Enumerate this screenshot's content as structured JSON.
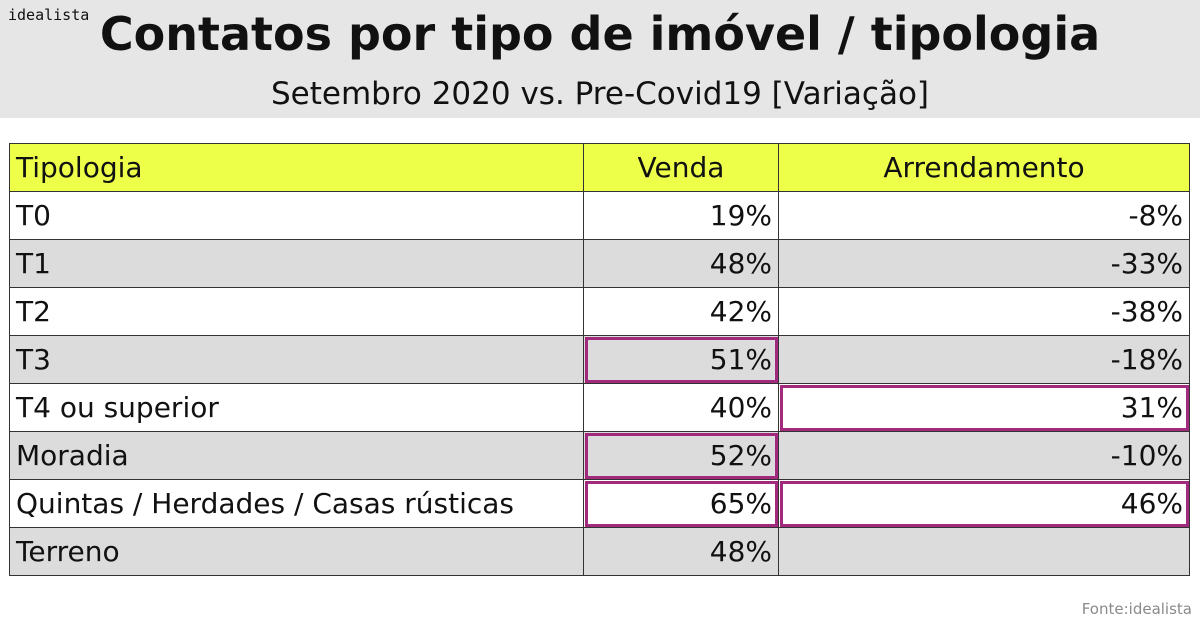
{
  "brand": "idealista",
  "header": {
    "title": "Contatos por tipo de imóvel / tipologia",
    "subtitle": "Setembro 2020 vs. Pre-Covid19 [Variação]"
  },
  "table": {
    "columns": [
      "Tipologia",
      "Venda",
      "Arrendamento"
    ],
    "rows": [
      {
        "label": "T0",
        "venda": "19%",
        "arrendamento": "-8%",
        "venda_highlight": false,
        "arrendamento_highlight": false
      },
      {
        "label": "T1",
        "venda": "48%",
        "arrendamento": "-33%",
        "venda_highlight": false,
        "arrendamento_highlight": false
      },
      {
        "label": "T2",
        "venda": "42%",
        "arrendamento": "-38%",
        "venda_highlight": false,
        "arrendamento_highlight": false
      },
      {
        "label": "T3",
        "venda": "51%",
        "arrendamento": "-18%",
        "venda_highlight": true,
        "arrendamento_highlight": false
      },
      {
        "label": "T4 ou superior",
        "venda": "40%",
        "arrendamento": "31%",
        "venda_highlight": false,
        "arrendamento_highlight": true
      },
      {
        "label": "Moradia",
        "venda": "52%",
        "arrendamento": "-10%",
        "venda_highlight": true,
        "arrendamento_highlight": false
      },
      {
        "label": "Quintas / Herdades / Casas rústicas",
        "venda": "65%",
        "arrendamento": "46%",
        "venda_highlight": true,
        "arrendamento_highlight": true
      },
      {
        "label": "Terreno",
        "venda": "48%",
        "arrendamento": "",
        "venda_highlight": false,
        "arrendamento_highlight": false
      }
    ]
  },
  "chart_data": {
    "type": "table",
    "columns": [
      "Tipologia",
      "Venda",
      "Arrendamento"
    ],
    "categories": [
      "T0",
      "T1",
      "T2",
      "T3",
      "T4 ou superior",
      "Moradia",
      "Quintas / Herdades / Casas rústicas",
      "Terreno"
    ],
    "series": [
      {
        "name": "Venda",
        "values": [
          19,
          48,
          42,
          51,
          40,
          52,
          65,
          48
        ]
      },
      {
        "name": "Arrendamento",
        "values": [
          -8,
          -33,
          -38,
          -18,
          31,
          -10,
          46,
          null
        ]
      }
    ],
    "title": "Contatos por tipo de imóvel / tipologia",
    "subtitle": "Setembro 2020 vs. Pre-Covid19 [Variação]"
  },
  "colors": {
    "header_band": "#e6e6e6",
    "header_row": "#eeff4a",
    "row_alt": "#dcdcdc",
    "highlight_border": "#a12a7e",
    "source_text": "#8a8a8a"
  },
  "footer": {
    "source": "Fonte:idealista"
  }
}
